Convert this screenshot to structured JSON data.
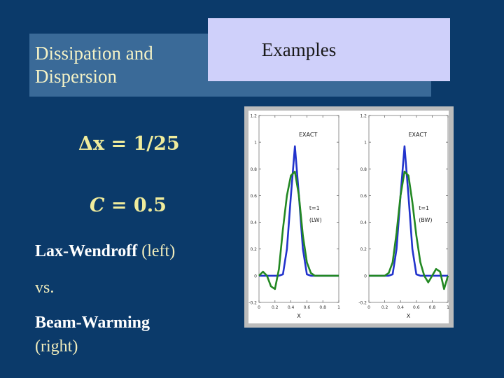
{
  "slide": {
    "title_line1": "Dissipation and",
    "title_line2": "Dispersion",
    "examples_label": "Examples",
    "formula_dx_symbol": "Δx",
    "formula_dx_value": " = 1/25",
    "formula_c_symbol": "C",
    "formula_c_value": " = 0.5",
    "caption_lw_bold": "Lax-Wendroff",
    "caption_lw_rest": " (left)",
    "caption_vs": "vs.",
    "caption_bw_bold": "Beam-Warming",
    "caption_bw_rest": "(right)"
  },
  "colors": {
    "exact": "#2233cc",
    "numerical": "#228822"
  },
  "chart_data": [
    {
      "type": "line",
      "xlabel": "X",
      "ylabel": "",
      "xlim": [
        0,
        1
      ],
      "ylim": [
        -0.2,
        1.2
      ],
      "xticks": [
        "0",
        "0.2",
        "0.4",
        "0.6",
        "0.8",
        "1"
      ],
      "yticks": [
        "-0.2",
        "0",
        "0.2",
        "0.4",
        "0.6",
        "0.8",
        "1",
        "1.2"
      ],
      "annotations": {
        "exact_label": "EXACT",
        "time_label": "t=1",
        "method_label": "(LW)"
      },
      "series": [
        {
          "role": "exact",
          "x": [
            0,
            0.25,
            0.3,
            0.35,
            0.4,
            0.45,
            0.5,
            0.55,
            0.6,
            0.65,
            0.7,
            0.75,
            1
          ],
          "y": [
            0,
            0,
            0.01,
            0.2,
            0.6,
            0.97,
            0.6,
            0.2,
            0.01,
            0,
            0,
            0,
            0
          ]
        },
        {
          "role": "numerical",
          "x": [
            0,
            0.05,
            0.1,
            0.15,
            0.2,
            0.25,
            0.3,
            0.35,
            0.4,
            0.45,
            0.5,
            0.55,
            0.6,
            0.65,
            0.7,
            0.8,
            0.9,
            1
          ],
          "y": [
            0,
            0.03,
            0,
            -0.08,
            -0.1,
            0.05,
            0.35,
            0.6,
            0.75,
            0.78,
            0.6,
            0.3,
            0.1,
            0.02,
            0,
            0,
            0,
            0
          ]
        }
      ]
    },
    {
      "type": "line",
      "xlabel": "X",
      "ylabel": "",
      "xlim": [
        0,
        1
      ],
      "ylim": [
        -0.2,
        1.2
      ],
      "xticks": [
        "0",
        "0.2",
        "0.4",
        "0.6",
        "0.8",
        "1"
      ],
      "yticks": [
        "-0.2",
        "0",
        "0.2",
        "0.4",
        "0.6",
        "0.8",
        "1",
        "1.2"
      ],
      "annotations": {
        "exact_label": "EXACT",
        "time_label": "t=1",
        "method_label": "(BW)"
      },
      "series": [
        {
          "role": "exact",
          "x": [
            0,
            0.25,
            0.3,
            0.35,
            0.4,
            0.45,
            0.5,
            0.55,
            0.6,
            0.65,
            0.7,
            0.75,
            1
          ],
          "y": [
            0,
            0,
            0.01,
            0.2,
            0.6,
            0.97,
            0.6,
            0.2,
            0.01,
            0,
            0,
            0,
            0
          ]
        },
        {
          "role": "numerical",
          "x": [
            0,
            0.1,
            0.2,
            0.25,
            0.3,
            0.35,
            0.4,
            0.45,
            0.5,
            0.55,
            0.6,
            0.65,
            0.7,
            0.75,
            0.8,
            0.85,
            0.9,
            0.95,
            1
          ],
          "y": [
            0,
            0,
            0,
            0.02,
            0.1,
            0.32,
            0.6,
            0.78,
            0.75,
            0.55,
            0.3,
            0.1,
            0,
            -0.05,
            0,
            0.05,
            0.03,
            -0.1,
            0
          ]
        }
      ]
    }
  ]
}
